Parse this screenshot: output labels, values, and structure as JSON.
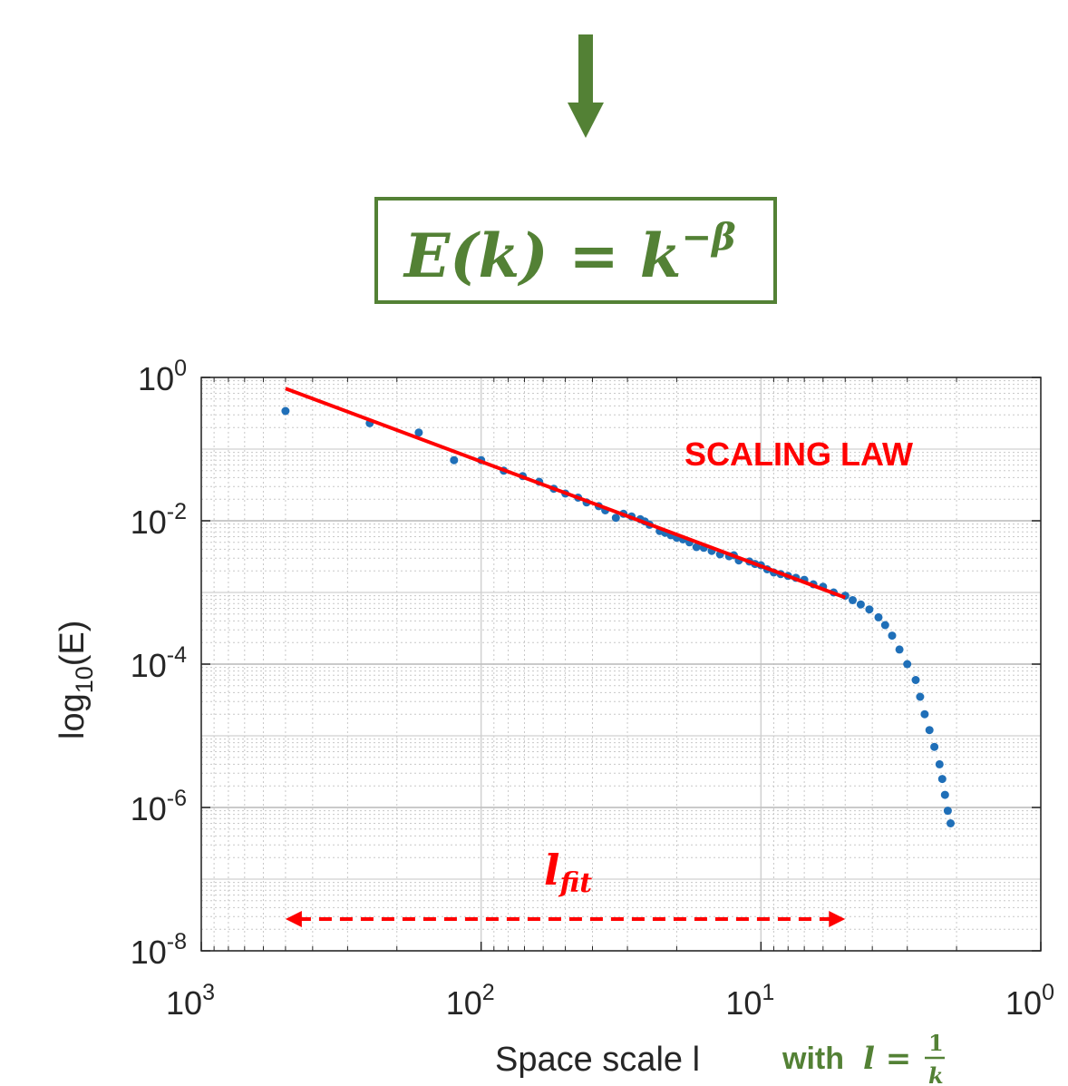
{
  "header": {
    "formula": {
      "lhs": "E(k) = k",
      "exponent": "−β"
    }
  },
  "annotations": {
    "scaling_law": "SCALING LAW",
    "fit_range_label_base": "l",
    "fit_range_label_sub": "fit",
    "fit_range": [
      500,
      5
    ]
  },
  "colors": {
    "arrow_green": "#538135",
    "data_blue": "#1f6fb8",
    "fit_red": "#ff0000",
    "grid": "#d9d9d9"
  },
  "chart_data": {
    "type": "scatter",
    "xscale": "log",
    "yscale": "log",
    "x_reversed": true,
    "xlim": [
      1000,
      1
    ],
    "ylim": [
      1e-08,
      1
    ],
    "grid": true,
    "ylabel_base": "log",
    "ylabel_sub": "10",
    "ylabel_tail": "(E)",
    "xlabel": "Space scale l",
    "xlabel_note_prefix": "with ",
    "xlabel_note_formula": "l = ",
    "xlabel_note_num": "1",
    "xlabel_note_den": "k",
    "x_ticks": [
      {
        "value": 1000,
        "base": "10",
        "exp": "3"
      },
      {
        "value": 100,
        "base": "10",
        "exp": "2"
      },
      {
        "value": 10,
        "base": "10",
        "exp": "1"
      },
      {
        "value": 1,
        "base": "10",
        "exp": "0"
      }
    ],
    "y_ticks": [
      {
        "value": 1,
        "base": "10",
        "exp": "0"
      },
      {
        "value": 0.01,
        "base": "10",
        "exp": "-2"
      },
      {
        "value": 0.0001,
        "base": "10",
        "exp": "-4"
      },
      {
        "value": 1e-06,
        "base": "10",
        "exp": "-6"
      },
      {
        "value": 1e-08,
        "base": "10",
        "exp": "-8"
      }
    ],
    "series": [
      {
        "points": [
          [
            500,
            0.34
          ],
          [
            250,
            0.23
          ],
          [
            167,
            0.17
          ],
          [
            125,
            0.07
          ],
          [
            100,
            0.07
          ],
          [
            83,
            0.05
          ],
          [
            71,
            0.042
          ],
          [
            62,
            0.035
          ],
          [
            55,
            0.028
          ],
          [
            50,
            0.024
          ],
          [
            45,
            0.021
          ],
          [
            42,
            0.018
          ],
          [
            38,
            0.016
          ],
          [
            36,
            0.014
          ],
          [
            33,
            0.011
          ],
          [
            31,
            0.0125
          ],
          [
            29,
            0.0115
          ],
          [
            27,
            0.0105
          ],
          [
            26,
            0.0098
          ],
          [
            25,
            0.0088
          ],
          [
            23,
            0.0072
          ],
          [
            22,
            0.0068
          ],
          [
            21,
            0.0063
          ],
          [
            20,
            0.0058
          ],
          [
            19,
            0.0055
          ],
          [
            18,
            0.005
          ],
          [
            17,
            0.0043
          ],
          [
            16,
            0.0042
          ],
          [
            15,
            0.0038
          ],
          [
            14,
            0.0034
          ],
          [
            13,
            0.0032
          ],
          [
            12.5,
            0.0033
          ],
          [
            12,
            0.0028
          ],
          [
            11,
            0.0027
          ],
          [
            10.5,
            0.0025
          ],
          [
            10,
            0.0024
          ],
          [
            9.5,
            0.0021
          ],
          [
            9,
            0.0019
          ],
          [
            8.5,
            0.0018
          ],
          [
            8,
            0.0017
          ],
          [
            7.5,
            0.0016
          ],
          [
            7,
            0.0015
          ],
          [
            6.5,
            0.0013
          ],
          [
            6,
            0.0012
          ],
          [
            5.5,
            0.001
          ],
          [
            5,
            0.0009
          ],
          [
            4.7,
            0.00078
          ],
          [
            4.4,
            0.00068
          ],
          [
            4.1,
            0.00058
          ],
          [
            3.8,
            0.00045
          ],
          [
            3.6,
            0.00035
          ],
          [
            3.4,
            0.00025
          ],
          [
            3.2,
            0.00016
          ],
          [
            3,
            0.0001
          ],
          [
            2.8,
            6e-05
          ],
          [
            2.7,
            3.5e-05
          ],
          [
            2.6,
            2e-05
          ],
          [
            2.5,
            1.2e-05
          ],
          [
            2.4,
            7e-06
          ],
          [
            2.3,
            4e-06
          ],
          [
            2.25,
            2.5e-06
          ],
          [
            2.2,
            1.5e-06
          ],
          [
            2.15,
            9e-07
          ],
          [
            2.1,
            6e-07
          ]
        ]
      },
      {
        "type": "line",
        "points": [
          [
            500,
            0.7
          ],
          [
            5,
            0.00085
          ]
        ]
      }
    ]
  }
}
